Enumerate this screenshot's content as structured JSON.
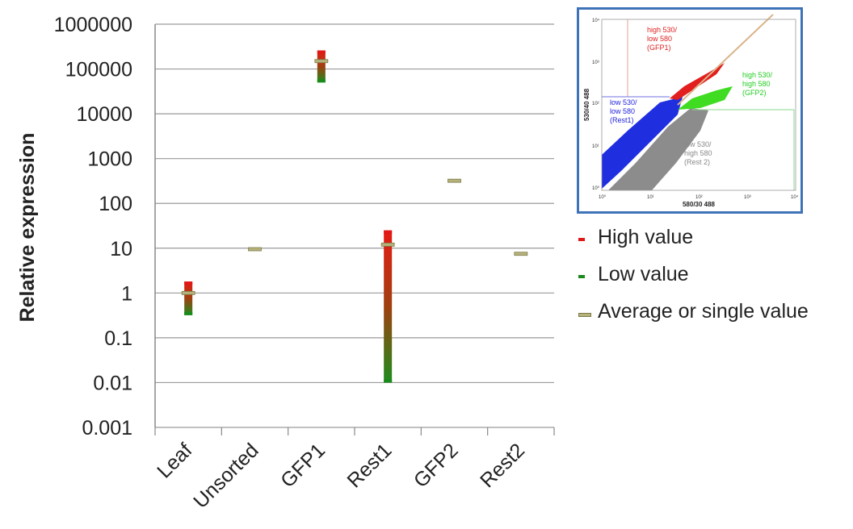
{
  "chart_data": {
    "type": "range-bar",
    "ylabel": "Relative expression",
    "yscale": "log",
    "ylim": [
      0.001,
      1000000
    ],
    "yticks": [
      "1000000",
      "100000",
      "10000",
      "1000",
      "100",
      "10",
      "1",
      "0.1",
      "0.01",
      "0.001"
    ],
    "categories": [
      "Leaf",
      "Unsorted",
      "GFP1",
      "Rest1",
      "GFP2",
      "Rest2"
    ],
    "high": [
      1.8,
      null,
      260000,
      25,
      null,
      null
    ],
    "low": [
      0.32,
      null,
      50000,
      0.01,
      null,
      null
    ],
    "average": [
      1,
      9.5,
      150000,
      12,
      320,
      7.5
    ],
    "grid": true
  },
  "legend": {
    "items": [
      {
        "label": "High value",
        "color": "#e01818"
      },
      {
        "label": "Low value",
        "color": "#1a8a1a"
      },
      {
        "label": "Average or single value",
        "color": "#b5b27a"
      }
    ]
  },
  "inset": {
    "xlabel": "580/30 488",
    "ylabel": "530/40 488",
    "gates": [
      {
        "text": [
          "high 530/",
          "low 580",
          "(GFP1)"
        ],
        "color": "#e02020"
      },
      {
        "text": [
          "high 530/",
          "high 580",
          "(GFP2)"
        ],
        "color": "#22cc22"
      },
      {
        "text": [
          "low 530/",
          "low 580",
          "(Rest1)"
        ],
        "color": "#2222dd"
      },
      {
        "text": [
          "low 530/",
          "high 580",
          "(Rest 2)"
        ],
        "color": "#888888"
      }
    ],
    "xticks": [
      "10⁰",
      "10¹",
      "10²",
      "10³",
      "10⁴"
    ],
    "yticks": [
      "10⁰",
      "10¹",
      "10²",
      "10³",
      "10⁴"
    ]
  }
}
